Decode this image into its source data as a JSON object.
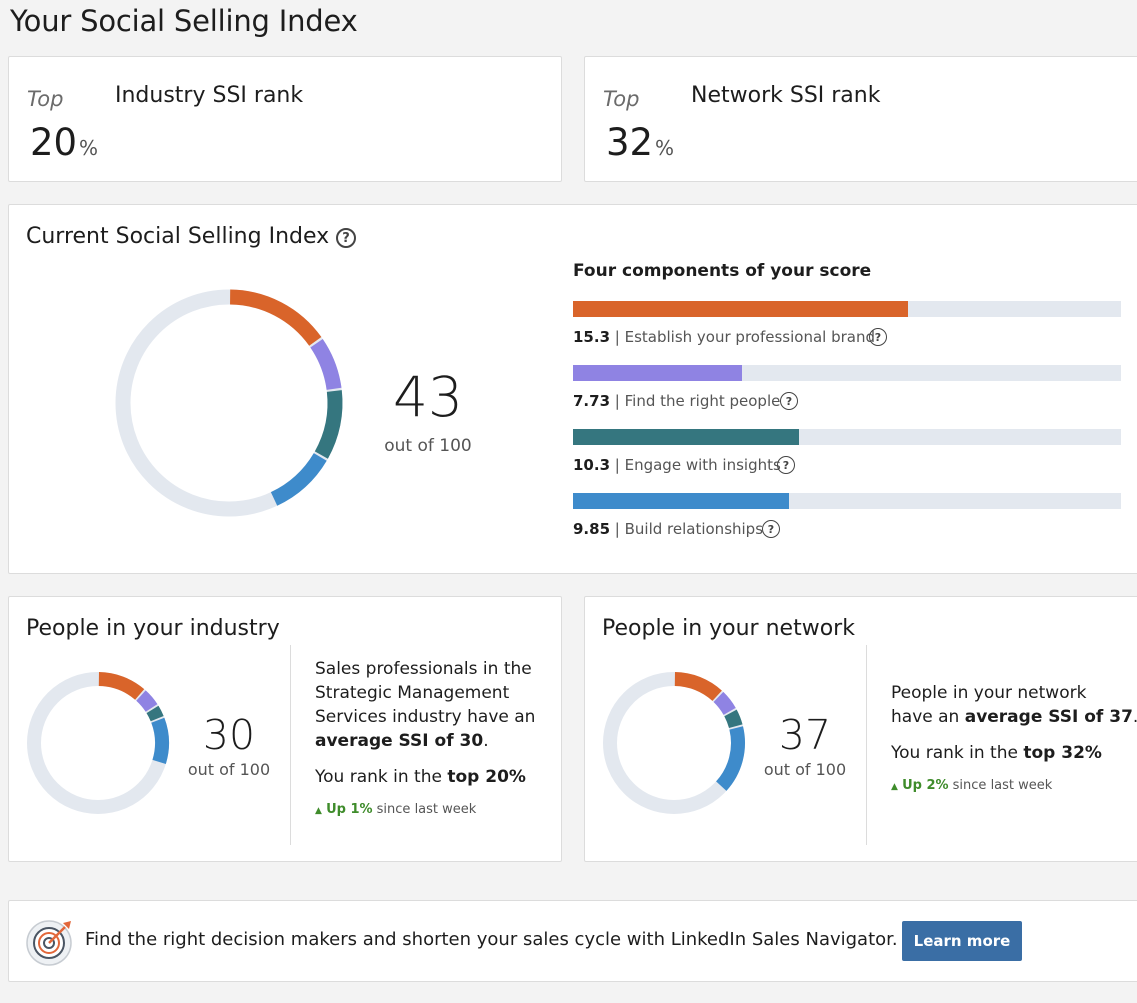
{
  "page": {
    "title": "Your Social Selling Index"
  },
  "industry_rank": {
    "prefix": "Top",
    "title": "Industry SSI rank",
    "value": "20",
    "unit": "%"
  },
  "network_rank": {
    "prefix": "Top",
    "title": "Network SSI rank",
    "value": "32",
    "unit": "%"
  },
  "current_ssi": {
    "title": "Current Social Selling Index",
    "help_icon": "question-circle-icon",
    "score": "43",
    "score_label": "out of 100",
    "components_heading": "Four components of your score",
    "track_color": "#e3e8ef",
    "components": [
      {
        "value": "15.3",
        "sep": " | ",
        "label": "Establish your professional brand",
        "score": 15.3,
        "max": 25,
        "color": "#d9642a"
      },
      {
        "value": "7.73",
        "sep": " | ",
        "label": "Find the right people",
        "score": 7.73,
        "max": 25,
        "color": "#8f83e3"
      },
      {
        "value": "10.3",
        "sep": " | ",
        "label": "Engage with insights",
        "score": 10.3,
        "max": 25,
        "color": "#35767f"
      },
      {
        "value": "9.85",
        "sep": " | ",
        "label": "Build relationships",
        "score": 9.85,
        "max": 25,
        "color": "#3e8bcb"
      }
    ]
  },
  "industry_people": {
    "title": "People in your industry",
    "score": "30",
    "score_label": "out of 100",
    "segments": [
      {
        "score": 11.5,
        "color": "#d9642a"
      },
      {
        "score": 4.5,
        "color": "#8f83e3"
      },
      {
        "score": 3,
        "color": "#35767f"
      },
      {
        "score": 11,
        "color": "#3e8bcb"
      }
    ],
    "desc_line1": "Sales professionals in the",
    "desc_line2": "Strategic Management",
    "desc_line3": "Services industry have an",
    "desc_bold": "average SSI of 30",
    "desc_end": ".",
    "rank_prefix": "You rank in the ",
    "rank_bold": "top 20%",
    "trend_arrow": "▲",
    "trend_value": "Up 1%",
    "trend_suffix": " since last week",
    "trend_color": "#3f8c2b"
  },
  "network_people": {
    "title": "People in your network",
    "score": "37",
    "score_label": "out of 100",
    "segments": [
      {
        "score": 12,
        "color": "#d9642a"
      },
      {
        "score": 5,
        "color": "#8f83e3"
      },
      {
        "score": 4,
        "color": "#35767f"
      },
      {
        "score": 16,
        "color": "#3e8bcb"
      }
    ],
    "desc_line1": "People in your network",
    "desc_prefix2": "have an ",
    "desc_bold": "average SSI of 37",
    "desc_end": ".",
    "rank_prefix": "You rank in the ",
    "rank_bold": "top 32%",
    "trend_arrow": "▲",
    "trend_value": "Up 2%",
    "trend_suffix": " since last week",
    "trend_color": "#3f8c2b"
  },
  "promo": {
    "icon": "target-icon",
    "text": "Find the right decision makers and shorten your sales cycle with LinkedIn Sales Navigator.",
    "button_label": "Learn more",
    "button_color": "#3a6ea5"
  }
}
